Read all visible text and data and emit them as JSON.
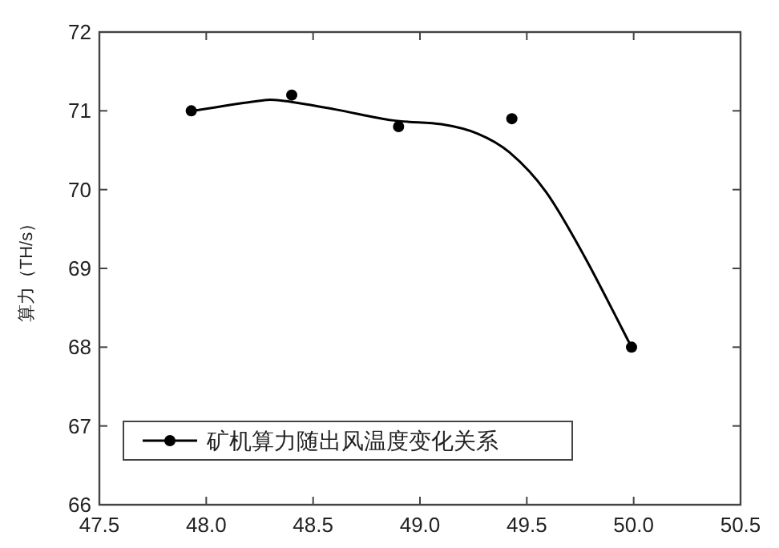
{
  "chart_data": {
    "type": "line",
    "ylabel": "算力（TH/s）",
    "xlim": [
      47.5,
      50.5
    ],
    "xticks": [
      {
        "value": 47.5,
        "label": "47.5"
      },
      {
        "value": 48,
        "label": "48.0"
      },
      {
        "value": 48.5,
        "label": "48.5"
      },
      {
        "value": 49,
        "label": "49.0"
      },
      {
        "value": 49.5,
        "label": "49.5"
      },
      {
        "value": 50,
        "label": "50.0"
      },
      {
        "value": 50.5,
        "label": "50.5"
      }
    ],
    "ylim": [
      66,
      72
    ],
    "yticks": [
      66,
      67,
      68,
      69,
      70,
      71,
      72
    ],
    "grid": false,
    "legend": "bottom left",
    "series": [
      {
        "name": "矿机算力随出风温度变化关系",
        "type": "scatter",
        "marker": "circle",
        "color": "#000000",
        "x": [
          47.93,
          48.4,
          48.9,
          49.43,
          49.99
        ],
        "values": [
          71.0,
          71.2,
          70.8,
          70.9,
          68.0
        ]
      },
      {
        "type": "line",
        "color": "#000000",
        "x": [
          47.94,
          48.23,
          48.35,
          48.6,
          48.87,
          49.1,
          49.27,
          49.42,
          49.59,
          49.77,
          49.99
        ],
        "values": [
          71.0,
          71.12,
          71.13,
          71.02,
          70.88,
          70.83,
          70.71,
          70.47,
          69.97,
          69.15,
          68.0
        ]
      }
    ]
  }
}
